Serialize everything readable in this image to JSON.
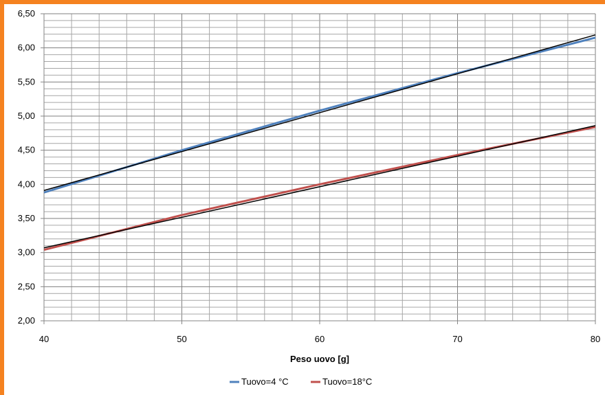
{
  "chart_data": {
    "type": "line",
    "xlabel": "Peso uovo [g]",
    "ylabel": "",
    "xlim": [
      40,
      80
    ],
    "ylim": [
      2.0,
      6.5
    ],
    "x_ticks": [
      "40",
      "50",
      "60",
      "70",
      "80"
    ],
    "y_ticks": [
      "2,00",
      "2,50",
      "3,00",
      "3,50",
      "4,00",
      "4,50",
      "5,00",
      "5,50",
      "6,00",
      "6,50"
    ],
    "grid": true,
    "legend_position": "bottom",
    "series": [
      {
        "name": "Tuovo=4 °C",
        "color": "#4f81bd",
        "x": [
          40,
          50,
          60,
          70,
          80
        ],
        "y": [
          3.88,
          4.5,
          5.08,
          5.63,
          6.15
        ]
      },
      {
        "name": "Tuovo=18°C",
        "color": "#c0504d",
        "x": [
          40,
          50,
          60,
          70,
          80
        ],
        "y": [
          3.04,
          3.55,
          4.0,
          4.43,
          4.84
        ]
      }
    ],
    "trendlines": [
      {
        "color": "#000000",
        "x": [
          40,
          80
        ],
        "y": [
          3.91,
          6.19
        ]
      },
      {
        "color": "#000000",
        "x": [
          40,
          80
        ],
        "y": [
          3.07,
          4.86
        ]
      }
    ]
  }
}
